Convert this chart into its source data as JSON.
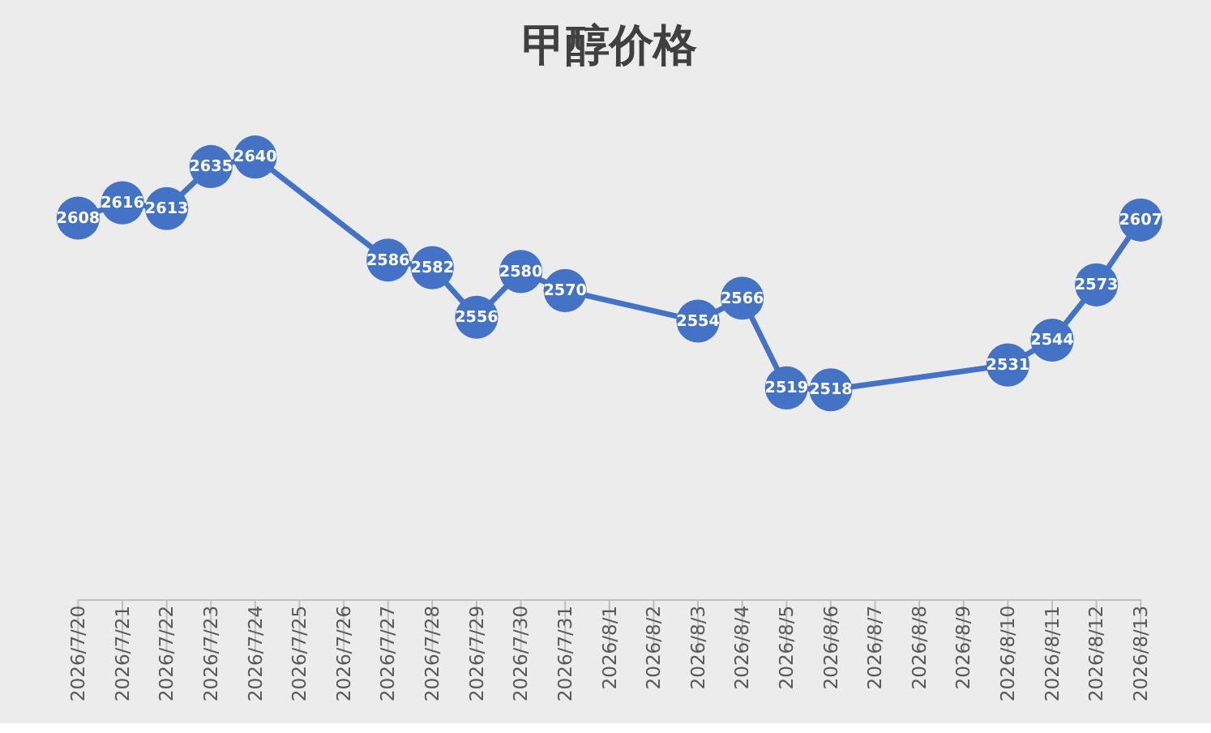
{
  "chart_data": {
    "type": "line",
    "title": "甲醇价格",
    "x": [
      "2026-07-20",
      "2026-07-21",
      "2026-07-22",
      "2026-07-23",
      "2026-07-24",
      "2026-07-27",
      "2026-07-28",
      "2026-07-29",
      "2026-07-30",
      "2026-07-31",
      "2026-08-03",
      "2026-08-04",
      "2026-08-05",
      "2026-08-06",
      "2026-08-10",
      "2026-08-11",
      "2026-08-12",
      "2026-08-13"
    ],
    "series": [
      {
        "color": "#4472c4",
        "values": [
          2608,
          2616,
          2613,
          2635,
          2640,
          2586,
          2582,
          2556,
          2580,
          2570,
          2554,
          2566,
          2519,
          2518,
          2531,
          2544,
          2573,
          2607
        ]
      }
    ],
    "xlim": [
      "2026-07-20",
      "2026-08-13"
    ],
    "xticks": [
      {
        "value": "2026-07-20",
        "label": "2026/7/20"
      },
      {
        "value": "2026-07-21",
        "label": "2026/7/21"
      },
      {
        "value": "2026-07-22",
        "label": "2026/7/22"
      },
      {
        "value": "2026-07-23",
        "label": "2026/7/23"
      },
      {
        "value": "2026-07-24",
        "label": "2026/7/24"
      },
      {
        "value": "2026-07-25",
        "label": "2026/7/25"
      },
      {
        "value": "2026-07-26",
        "label": "2026/7/26"
      },
      {
        "value": "2026-07-27",
        "label": "2026/7/27"
      },
      {
        "value": "2026-07-28",
        "label": "2026/7/28"
      },
      {
        "value": "2026-07-29",
        "label": "2026/7/29"
      },
      {
        "value": "2026-07-30",
        "label": "2026/7/30"
      },
      {
        "value": "2026-07-31",
        "label": "2026/7/31"
      },
      {
        "value": "2026-08-01",
        "label": "2026/8/1"
      },
      {
        "value": "2026-08-02",
        "label": "2026/8/2"
      },
      {
        "value": "2026-08-03",
        "label": "2026/8/3"
      },
      {
        "value": "2026-08-04",
        "label": "2026/8/4"
      },
      {
        "value": "2026-08-05",
        "label": "2026/8/5"
      },
      {
        "value": "2026-08-06",
        "label": "2026/8/6"
      },
      {
        "value": "2026-08-07",
        "label": "2026/8/7"
      },
      {
        "value": "2026-08-08",
        "label": "2026/8/8"
      },
      {
        "value": "2026-08-09",
        "label": "2026/8/9"
      },
      {
        "value": "2026-08-10",
        "label": "2026/8/10"
      },
      {
        "value": "2026-08-11",
        "label": "2026/8/11"
      },
      {
        "value": "2026-08-12",
        "label": "2026/8/12"
      },
      {
        "value": "2026-08-13",
        "label": "2026/8/13"
      }
    ],
    "tick_labels": "x",
    "marker": "circle",
    "line_style": "solid",
    "data_labels": true,
    "grid": false,
    "legend": false
  }
}
